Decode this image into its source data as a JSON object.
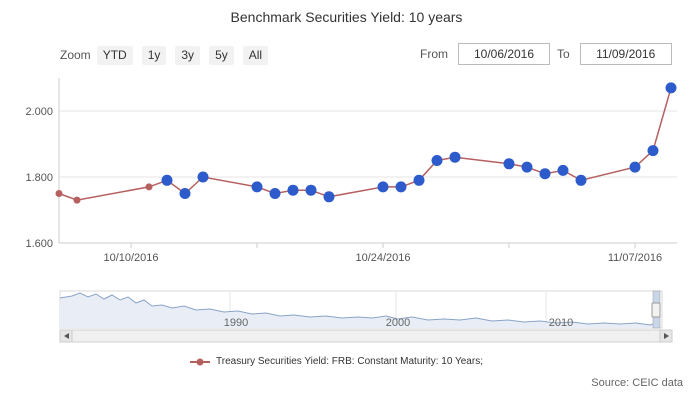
{
  "header": {
    "title": "Benchmark Securities Yield: 10 years"
  },
  "zoom": {
    "label": "Zoom",
    "buttons": [
      "YTD",
      "1y",
      "3y",
      "5y",
      "All"
    ]
  },
  "range": {
    "from_label": "From",
    "from_value": "10/06/2016",
    "to_label": "To",
    "to_value": "11/09/2016"
  },
  "navigator": {
    "year_labels": [
      "1990",
      "2000",
      "2010"
    ]
  },
  "legend": {
    "label": "Treasury Securities Yield: FRB: Constant Maturity: 10 Years;"
  },
  "footer": {
    "source": "Source: CEIC data"
  },
  "colors": {
    "line": "#b5605f",
    "marker": "#2d5bcc",
    "navigator_line": "#8aa3c8"
  },
  "chart_data": {
    "type": "line",
    "title": "Benchmark Securities Yield: 10 years",
    "xlabel": "",
    "ylabel": "",
    "ylim": [
      1.6,
      2.1
    ],
    "y_ticks": [
      "1.600",
      "1.800",
      "2.000"
    ],
    "x_ticks": [
      "10/10/2016",
      "10/24/2016",
      "11/07/2016"
    ],
    "series": [
      {
        "name": "Treasury Securities Yield: FRB: Constant Maturity: 10 Years;",
        "points": [
          {
            "x": "2016-10-06",
            "y": 1.75
          },
          {
            "x": "2016-10-07",
            "y": 1.73
          },
          {
            "x": "2016-10-11",
            "y": 1.77
          },
          {
            "x": "2016-10-12",
            "y": 1.79
          },
          {
            "x": "2016-10-13",
            "y": 1.75
          },
          {
            "x": "2016-10-14",
            "y": 1.8
          },
          {
            "x": "2016-10-17",
            "y": 1.77
          },
          {
            "x": "2016-10-18",
            "y": 1.75
          },
          {
            "x": "2016-10-19",
            "y": 1.76
          },
          {
            "x": "2016-10-20",
            "y": 1.76
          },
          {
            "x": "2016-10-21",
            "y": 1.74
          },
          {
            "x": "2016-10-24",
            "y": 1.77
          },
          {
            "x": "2016-10-25",
            "y": 1.77
          },
          {
            "x": "2016-10-26",
            "y": 1.79
          },
          {
            "x": "2016-10-27",
            "y": 1.85
          },
          {
            "x": "2016-10-28",
            "y": 1.86
          },
          {
            "x": "2016-10-31",
            "y": 1.84
          },
          {
            "x": "2016-11-01",
            "y": 1.83
          },
          {
            "x": "2016-11-02",
            "y": 1.81
          },
          {
            "x": "2016-11-03",
            "y": 1.82
          },
          {
            "x": "2016-11-04",
            "y": 1.79
          },
          {
            "x": "2016-11-07",
            "y": 1.83
          },
          {
            "x": "2016-11-08",
            "y": 1.88
          },
          {
            "x": "2016-11-09",
            "y": 2.07
          }
        ]
      }
    ]
  }
}
